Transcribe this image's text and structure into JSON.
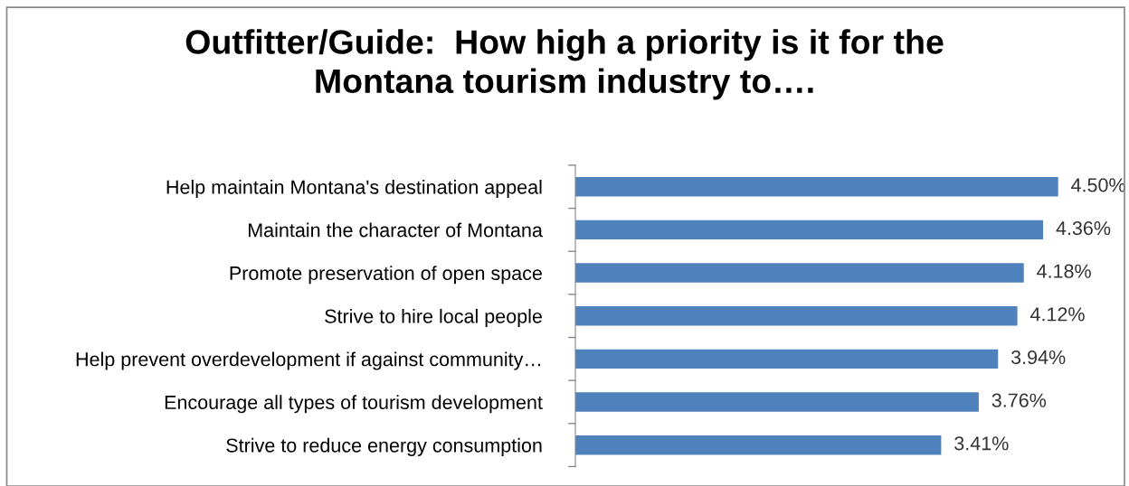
{
  "chart_data": {
    "type": "bar",
    "orientation": "horizontal",
    "title": "Outfitter/Guide:  How high a priority is it for the\nMontana tourism industry to….",
    "categories": [
      "Help maintain Montana's destination appeal",
      "Maintain the character of Montana",
      "Promote preservation of open space",
      "Strive to hire local people",
      "Help prevent overdevelopment if against community…",
      "Encourage all types of tourism development",
      "Strive to reduce energy consumption"
    ],
    "values": [
      4.5,
      4.36,
      4.18,
      4.12,
      3.94,
      3.76,
      3.41
    ],
    "value_labels": [
      "4.50%",
      "4.36%",
      "4.18%",
      "4.12%",
      "3.94%",
      "3.76%",
      "3.41%"
    ],
    "color": "#4f81bd",
    "xlim": [
      0,
      5.15
    ],
    "tick_labels": "y",
    "grid": false,
    "legend": false
  }
}
